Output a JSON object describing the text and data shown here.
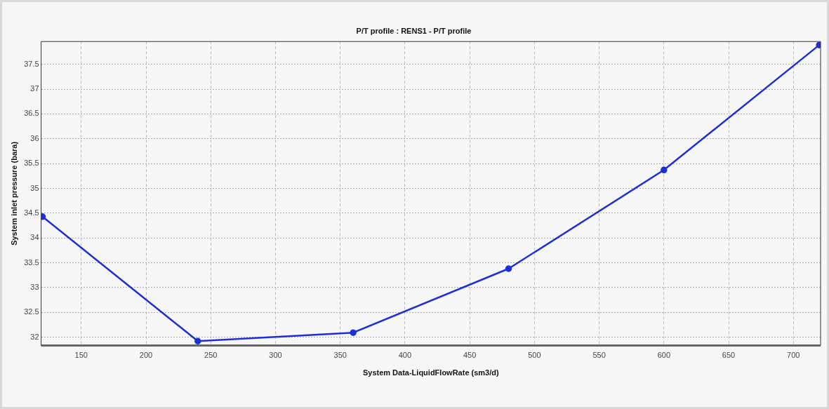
{
  "chart_data": {
    "type": "line",
    "title": "P/T profile : RENS1 - P/T profile",
    "xlabel": "System Data-LiquidFlowRate (sm3/d)",
    "ylabel": "System inlet pressure (bara)",
    "x": [
      120,
      240,
      360,
      480,
      600,
      720
    ],
    "series": [
      {
        "color": "#1f2fd6",
        "values": [
          34.43,
          31.92,
          32.09,
          33.38,
          35.37,
          37.89
        ]
      }
    ],
    "xlim": [
      119,
      721
    ],
    "xticks": [
      150,
      200,
      250,
      300,
      350,
      400,
      450,
      500,
      550,
      600,
      650,
      700
    ],
    "ylim": [
      31.83,
      37.96
    ],
    "yticks": [
      32,
      32.5,
      33,
      33.5,
      34,
      34.5,
      35,
      35.5,
      36,
      36.5,
      37,
      37.5
    ],
    "grid": true,
    "legend": false,
    "marker": "circle",
    "line_style": "solid"
  }
}
